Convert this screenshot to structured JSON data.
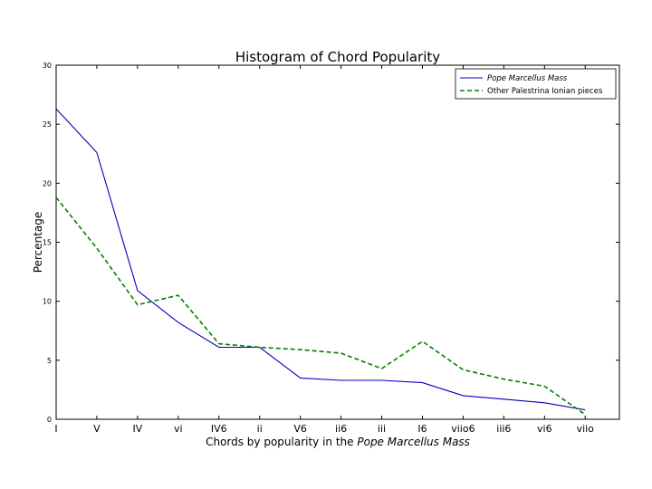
{
  "chart_data": {
    "type": "line",
    "title": "Histogram of Chord Popularity",
    "xlabel_prefix": "Chords by popularity in the ",
    "xlabel_italic": "Pope Marcellus Mass",
    "ylabel": "Percentage",
    "categories": [
      "I",
      "V",
      "IV",
      "vi",
      "IV6",
      "ii",
      "V6",
      "ii6",
      "iii",
      "I6",
      "viio6",
      "iii6",
      "vi6",
      "viio"
    ],
    "ylim": [
      0,
      30
    ],
    "yticks": [
      "0",
      "5",
      "10",
      "15",
      "20",
      "25",
      "30"
    ],
    "legend_position": "top-right",
    "series": [
      {
        "name": "Pope Marcellus Mass",
        "italic": true,
        "color": "#0000bf",
        "style": "solid",
        "values": [
          26.3,
          22.6,
          10.9,
          8.2,
          6.1,
          6.1,
          3.5,
          3.3,
          3.3,
          3.1,
          2.0,
          1.7,
          1.4,
          0.8
        ]
      },
      {
        "name": "Other Palestrina Ionian pieces",
        "italic": false,
        "color": "#007f00",
        "style": "dashed",
        "values": [
          18.8,
          14.5,
          9.7,
          10.5,
          6.4,
          6.1,
          5.9,
          5.6,
          4.3,
          6.6,
          4.2,
          3.4,
          2.8,
          0.4
        ]
      }
    ]
  }
}
